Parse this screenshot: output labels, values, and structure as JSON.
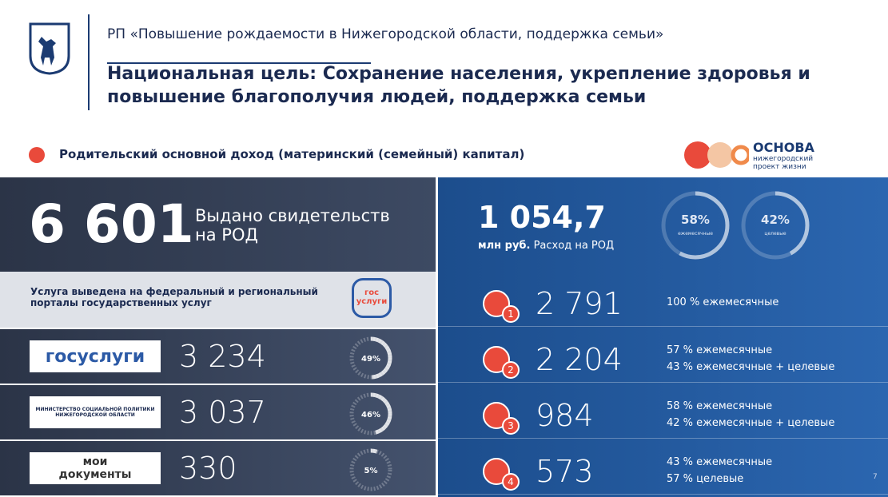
{
  "header": {
    "title": "РП «Повышение рождаемости в Нижегородской области, поддержка семьи»",
    "goal": "Национальная цель: Сохранение населения, укрепление здоровья и повышение благополучия людей, поддержка семьи",
    "section": "Родительский основной доход (материнский (семейный) капитал)",
    "brand": {
      "name": "ОСНОВА",
      "sub": "нижегородский проект жизни"
    }
  },
  "left": {
    "total": "6 601",
    "total_label": "Выдано свидетельств на РОД",
    "notice": "Услуга выведена на федеральный и региональный порталы государственных услуг",
    "notice_logo": [
      "гос",
      "услуги"
    ],
    "channels": [
      {
        "logo": "госуслуги",
        "value": "3 234",
        "ring": {
          "value": 49,
          "label": "49%"
        }
      },
      {
        "logo": [
          "МИНИСТЕРСТВО СОЦИАЛЬНОЙ ПОЛИТИКИ",
          "НИЖЕГОРОДСКОЙ ОБЛАСТИ"
        ],
        "value": "3 037",
        "ring": {
          "value": 46,
          "label": "46%"
        }
      },
      {
        "logo": [
          "мои",
          "документы"
        ],
        "value": "330",
        "ring": {
          "value": 5,
          "label": "5%"
        }
      }
    ]
  },
  "right": {
    "amount": "1 054,7",
    "unit": "млн руб.",
    "amount_label": "Расход на РОД",
    "rings": [
      {
        "value": 58,
        "label": "58%",
        "caption": "ежемесячные"
      },
      {
        "value": 42,
        "label": "42%",
        "caption": "целевые"
      }
    ],
    "children": [
      {
        "order": "1",
        "value": "2 791",
        "notes": [
          "100 % ежемесячные"
        ]
      },
      {
        "order": "2",
        "value": "2 204",
        "notes": [
          "57 % ежемесячные",
          "43 % ежемесячные + целевые"
        ]
      },
      {
        "order": "3",
        "value": "984",
        "notes": [
          "58 % ежемесячные",
          "42 % ежемесячные + целевые"
        ]
      },
      {
        "order": "4",
        "value": "573",
        "notes": [
          "43 % ежемесячные",
          "57 %  целевые"
        ]
      }
    ]
  },
  "page_number": "7"
}
